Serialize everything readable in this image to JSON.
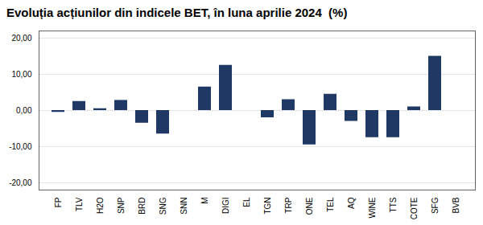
{
  "chart_data": {
    "type": "bar",
    "title": "Evoluția acțiunilor din indicele BET, în luna aprilie 2024  (%)",
    "categories": [
      "FP",
      "TLV",
      "H2O",
      "SNP",
      "BRD",
      "SNG",
      "SNN",
      "M",
      "DIGI",
      "EL",
      "TGN",
      "TRP",
      "ONE",
      "TEL",
      "AQ",
      "WINE",
      "TTS",
      "COTE",
      "SFG",
      "BVB"
    ],
    "values": [
      -0.5,
      2.5,
      0.5,
      2.8,
      -3.5,
      -6.5,
      0.0,
      6.5,
      12.5,
      0.0,
      -2.0,
      3.0,
      -9.5,
      4.5,
      -3.0,
      -7.5,
      -7.5,
      1.0,
      15.0,
      0.0
    ],
    "color": "#1F3864",
    "ylim": [
      -22,
      22
    ],
    "yticks": [
      {
        "value": -20,
        "label": "-20,00"
      },
      {
        "value": -10,
        "label": "-10,00"
      },
      {
        "value": 0,
        "label": "0,00"
      },
      {
        "value": 10,
        "label": "10,00"
      },
      {
        "value": 20,
        "label": "20,00"
      }
    ],
    "grid": true
  }
}
